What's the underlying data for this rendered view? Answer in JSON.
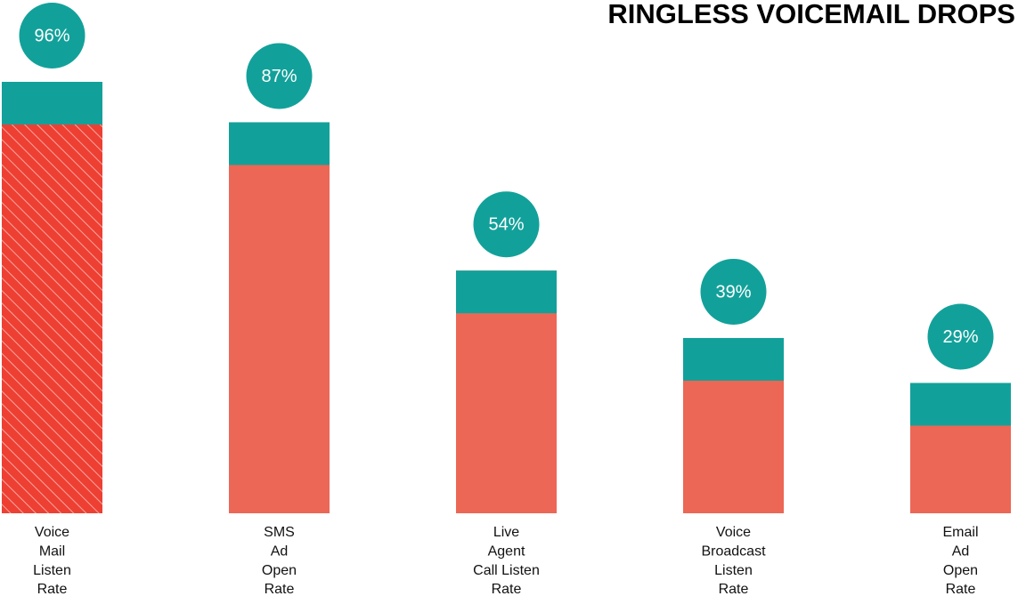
{
  "chart_data": {
    "type": "bar",
    "title": "RINGLESS VOICEMAIL DROPS",
    "categories": [
      [
        "Voice",
        "Mail",
        "Listen",
        "Rate"
      ],
      [
        "SMS",
        "Ad",
        "Open",
        "Rate"
      ],
      [
        "Live",
        "Agent",
        "Call Listen",
        "Rate"
      ],
      [
        "Voice",
        "Broadcast",
        "Listen",
        "Rate"
      ],
      [
        "Email",
        "Ad",
        "Open",
        "Rate"
      ]
    ],
    "values": [
      96,
      87,
      54,
      39,
      29
    ],
    "value_labels": [
      "96%",
      "87%",
      "54%",
      "39%",
      "29%"
    ],
    "color": "#ec6755",
    "cap_color": "#12a19a",
    "label_color": "#12a19a",
    "highlight_index": 0,
    "highlight_color": "#ee3f33"
  }
}
